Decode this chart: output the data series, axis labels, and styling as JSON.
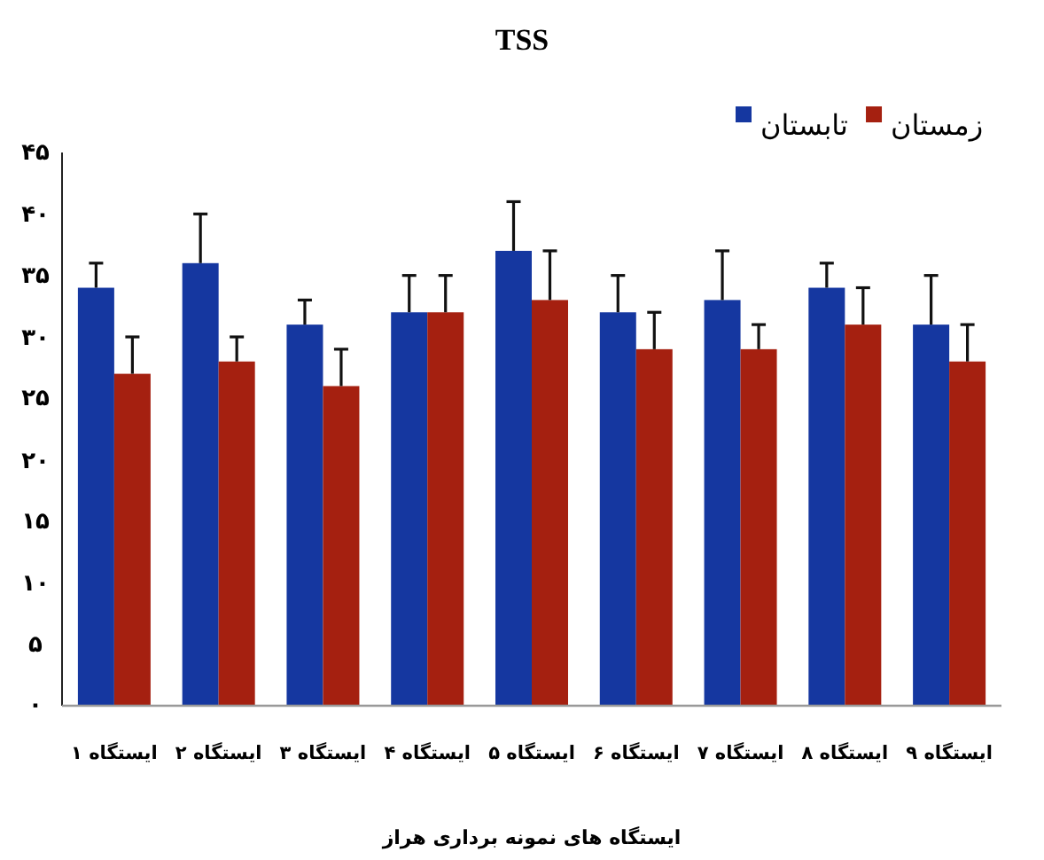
{
  "chart_data": {
    "type": "bar",
    "title": "TSS",
    "xlabel": "ایستگاه های نمونه برداری هراز",
    "categories": [
      "ایستگاه ۱",
      "ایستگاه ۲",
      "ایستگاه ۳",
      "ایستگاه ۴",
      "ایستگاه ۵",
      "ایستگاه ۶",
      "ایستگاه ۷",
      "ایستگاه ۸",
      "ایستگاه ۹"
    ],
    "series": [
      {
        "name": "تابستان",
        "color": "#1537a0",
        "values": [
          34,
          36,
          31,
          32,
          37,
          32,
          33,
          34,
          31
        ],
        "errors": [
          [
            34,
            36
          ],
          [
            36,
            40
          ],
          [
            31,
            33
          ],
          [
            32,
            35
          ],
          [
            37,
            41
          ],
          [
            32,
            35
          ],
          [
            33,
            37
          ],
          [
            34,
            36
          ],
          [
            31,
            35
          ]
        ]
      },
      {
        "name": "زمستان",
        "color": "#a52010",
        "values": [
          27,
          28,
          26,
          32,
          33,
          29,
          29,
          31,
          28
        ],
        "errors": [
          [
            27,
            30
          ],
          [
            28,
            30
          ],
          [
            26,
            29
          ],
          [
            32,
            35
          ],
          [
            33,
            37
          ],
          [
            29,
            32
          ],
          [
            29,
            31
          ],
          [
            31,
            34
          ],
          [
            28,
            31
          ]
        ]
      }
    ],
    "ylim": [
      0,
      45
    ],
    "yticks": [
      {
        "value": 0,
        "label": "۰"
      },
      {
        "value": 5,
        "label": "۵"
      },
      {
        "value": 10,
        "label": "۱۰"
      },
      {
        "value": 15,
        "label": "۱۵"
      },
      {
        "value": 20,
        "label": "۲۰"
      },
      {
        "value": 25,
        "label": "۲۵"
      },
      {
        "value": 30,
        "label": "۳۰"
      },
      {
        "value": 35,
        "label": "۳۵"
      },
      {
        "value": 40,
        "label": "۴۰"
      },
      {
        "value": 45,
        "label": "۴۵"
      }
    ],
    "legend": "top right",
    "grid": false
  }
}
